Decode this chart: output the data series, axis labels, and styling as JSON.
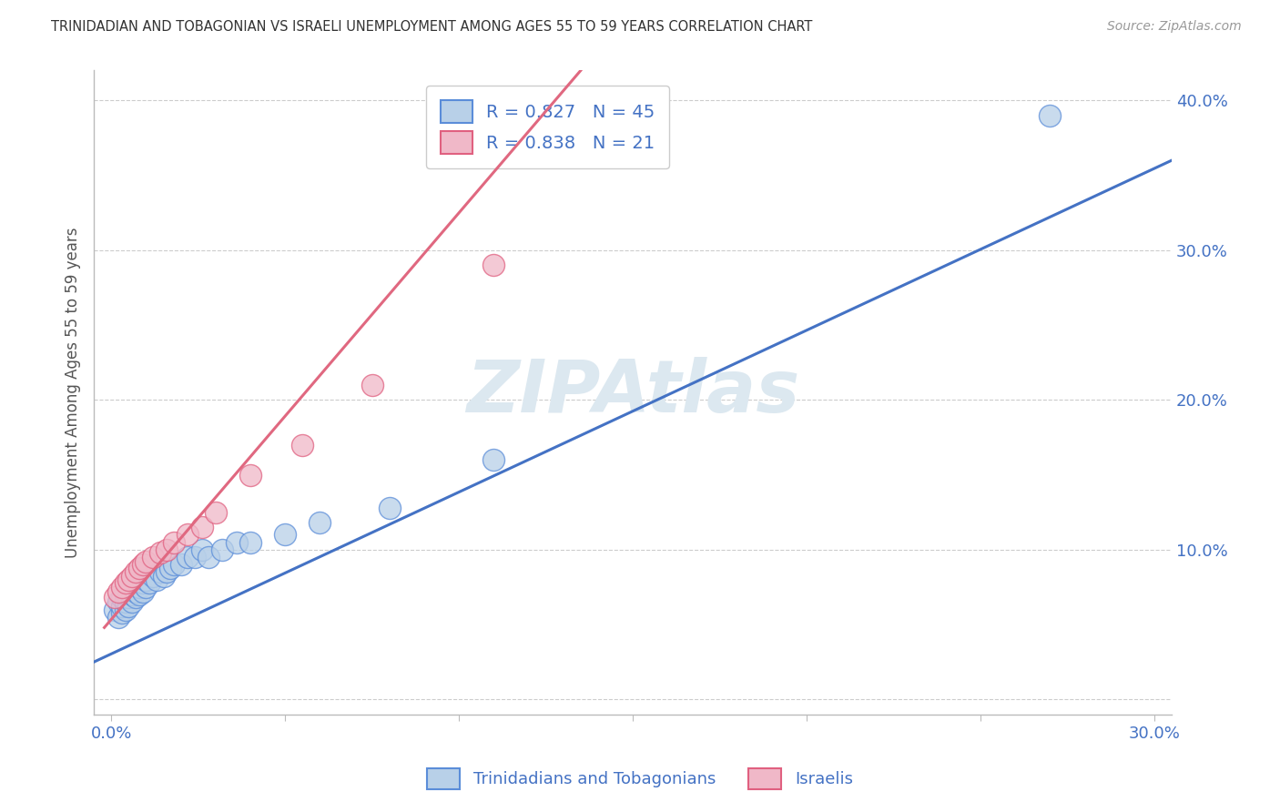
{
  "title": "TRINIDADIAN AND TOBAGONIAN VS ISRAELI UNEMPLOYMENT AMONG AGES 55 TO 59 YEARS CORRELATION CHART",
  "source": "Source: ZipAtlas.com",
  "ylabel": "Unemployment Among Ages 55 to 59 years",
  "xlim": [
    -0.005,
    0.305
  ],
  "ylim": [
    -0.01,
    0.42
  ],
  "xticks": [
    0.0,
    0.05,
    0.1,
    0.15,
    0.2,
    0.25,
    0.3
  ],
  "xticklabels": [
    "0.0%",
    "",
    "",
    "",
    "",
    "",
    "30.0%"
  ],
  "yticks": [
    0.0,
    0.1,
    0.2,
    0.3,
    0.4
  ],
  "yticklabels": [
    "",
    "10.0%",
    "20.0%",
    "30.0%",
    "40.0%"
  ],
  "blue_scatter_color": "#b8d0e8",
  "blue_edge_color": "#5b8dd9",
  "pink_scatter_color": "#f0b8c8",
  "pink_edge_color": "#e06080",
  "blue_line_color": "#4472c4",
  "pink_line_color": "#e06880",
  "watermark_color": "#dce8f0",
  "legend_label_color": "#4472c4",
  "R_blue": 0.827,
  "N_blue": 45,
  "R_pink": 0.838,
  "N_pink": 21,
  "blue_scatter_x": [
    0.001,
    0.002,
    0.002,
    0.003,
    0.003,
    0.003,
    0.004,
    0.004,
    0.004,
    0.005,
    0.005,
    0.005,
    0.006,
    0.006,
    0.006,
    0.007,
    0.007,
    0.007,
    0.008,
    0.008,
    0.009,
    0.009,
    0.01,
    0.01,
    0.011,
    0.012,
    0.013,
    0.014,
    0.015,
    0.016,
    0.017,
    0.018,
    0.02,
    0.022,
    0.024,
    0.026,
    0.028,
    0.032,
    0.036,
    0.04,
    0.05,
    0.06,
    0.08,
    0.11,
    0.27
  ],
  "blue_scatter_y": [
    0.06,
    0.055,
    0.065,
    0.058,
    0.062,
    0.068,
    0.06,
    0.065,
    0.07,
    0.062,
    0.068,
    0.072,
    0.065,
    0.07,
    0.075,
    0.068,
    0.072,
    0.078,
    0.07,
    0.075,
    0.072,
    0.078,
    0.075,
    0.08,
    0.078,
    0.082,
    0.08,
    0.085,
    0.082,
    0.085,
    0.088,
    0.09,
    0.09,
    0.095,
    0.095,
    0.1,
    0.095,
    0.1,
    0.105,
    0.105,
    0.11,
    0.118,
    0.128,
    0.16,
    0.39
  ],
  "pink_scatter_x": [
    0.001,
    0.002,
    0.003,
    0.004,
    0.005,
    0.006,
    0.007,
    0.008,
    0.009,
    0.01,
    0.012,
    0.014,
    0.016,
    0.018,
    0.022,
    0.026,
    0.03,
    0.04,
    0.055,
    0.075,
    0.11
  ],
  "pink_scatter_y": [
    0.068,
    0.072,
    0.075,
    0.078,
    0.08,
    0.082,
    0.085,
    0.088,
    0.09,
    0.092,
    0.095,
    0.098,
    0.1,
    0.105,
    0.11,
    0.115,
    0.125,
    0.15,
    0.17,
    0.21,
    0.29
  ],
  "blue_line_x0": -0.005,
  "blue_line_x1": 0.305,
  "blue_line_y0": 0.025,
  "blue_line_y1": 0.36,
  "pink_line_x0": -0.002,
  "pink_line_x1": 0.135,
  "pink_line_y0": 0.048,
  "pink_line_y1": 0.42
}
